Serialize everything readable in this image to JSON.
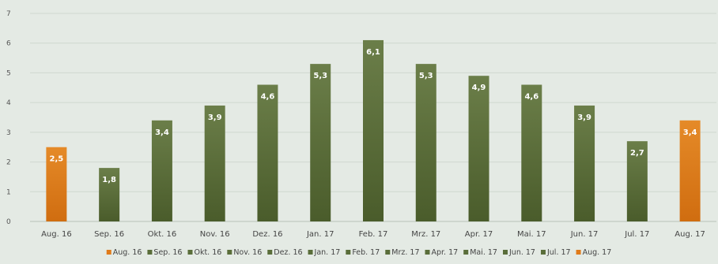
{
  "chart_data": {
    "type": "bar",
    "title": "",
    "xlabel": "",
    "ylabel": "",
    "ylim": [
      0,
      7
    ],
    "yticks": [
      0,
      1,
      2,
      3,
      4,
      5,
      6,
      7
    ],
    "grid": true,
    "legend": "bottom",
    "categories": [
      "Aug. 16",
      "Sep. 16",
      "Okt. 16",
      "Nov. 16",
      "Dez. 16",
      "Jan. 17",
      "Feb. 17",
      "Mrz. 17",
      "Apr. 17",
      "Mai. 17",
      "Jun. 17",
      "Jul. 17",
      "Aug. 17"
    ],
    "values": [
      2.5,
      1.8,
      3.4,
      3.9,
      4.6,
      5.3,
      6.1,
      5.3,
      4.9,
      4.6,
      3.9,
      2.7,
      3.4
    ],
    "data_labels": [
      "2,5",
      "1,8",
      "3,4",
      "3,9",
      "4,6",
      "5,3",
      "6,1",
      "5,3",
      "4,9",
      "4,6",
      "3,9",
      "2,7",
      "3,4"
    ],
    "colors": [
      "#e07b1a",
      "#5a6e3a",
      "#5a6e3a",
      "#5a6e3a",
      "#5a6e3a",
      "#5a6e3a",
      "#5a6e3a",
      "#5a6e3a",
      "#5a6e3a",
      "#5a6e3a",
      "#5a6e3a",
      "#5a6e3a",
      "#e07b1a"
    ]
  }
}
